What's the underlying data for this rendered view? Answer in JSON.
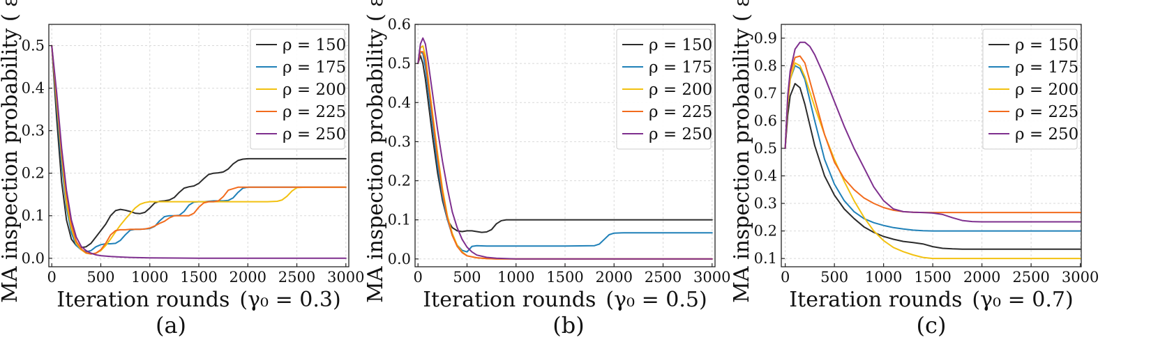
{
  "chart_data": [
    {
      "type": "line",
      "panel_label": "(a)",
      "xlabel": "Iteration rounds",
      "xlabel_param": "(γ₀ = 0.3)",
      "ylabel": "MA inspection probability ( ε )",
      "xlim": [
        -30,
        3030
      ],
      "ylim": [
        -0.02,
        0.55
      ],
      "xticks": [
        0,
        500,
        1000,
        1500,
        2000,
        2500,
        3000
      ],
      "yticks": [
        0.0,
        0.1,
        0.2,
        0.3,
        0.4,
        0.5
      ],
      "ytick_labels": [
        "0.0",
        "0.1",
        "0.2",
        "0.3",
        "0.4",
        "0.5"
      ],
      "grid": true,
      "legend_position": "top-right",
      "series": [
        {
          "name": "ρ = 150",
          "color": "#2b2b2b",
          "x": [
            0,
            50,
            100,
            150,
            200,
            250,
            300,
            350,
            400,
            450,
            500,
            550,
            600,
            650,
            700,
            750,
            800,
            850,
            900,
            950,
            1000,
            1050,
            1100,
            1150,
            1200,
            1250,
            1300,
            1350,
            1400,
            1450,
            1500,
            1550,
            1600,
            1650,
            1700,
            1750,
            1800,
            1850,
            1900,
            1950,
            2000,
            2100,
            2200,
            2500,
            3000
          ],
          "y": [
            0.5,
            0.33,
            0.18,
            0.09,
            0.045,
            0.03,
            0.025,
            0.027,
            0.035,
            0.05,
            0.065,
            0.08,
            0.1,
            0.112,
            0.115,
            0.113,
            0.11,
            0.106,
            0.105,
            0.108,
            0.118,
            0.13,
            0.134,
            0.135,
            0.137,
            0.143,
            0.155,
            0.165,
            0.168,
            0.17,
            0.176,
            0.187,
            0.197,
            0.2,
            0.201,
            0.203,
            0.21,
            0.222,
            0.23,
            0.233,
            0.234,
            0.234,
            0.234,
            0.234,
            0.234
          ]
        },
        {
          "name": "ρ = 175",
          "color": "#1f80b8",
          "x": [
            0,
            50,
            100,
            150,
            200,
            250,
            300,
            350,
            400,
            450,
            500,
            550,
            600,
            650,
            700,
            750,
            800,
            850,
            900,
            950,
            1000,
            1050,
            1100,
            1150,
            1200,
            1250,
            1300,
            1350,
            1400,
            1450,
            1500,
            1550,
            1600,
            1650,
            1700,
            1750,
            1800,
            1850,
            1900,
            1950,
            2000,
            2050,
            2100,
            2200,
            3000
          ],
          "y": [
            0.5,
            0.36,
            0.22,
            0.12,
            0.06,
            0.03,
            0.02,
            0.015,
            0.018,
            0.027,
            0.032,
            0.034,
            0.034,
            0.035,
            0.042,
            0.055,
            0.066,
            0.068,
            0.068,
            0.069,
            0.07,
            0.075,
            0.088,
            0.098,
            0.1,
            0.1,
            0.101,
            0.11,
            0.125,
            0.132,
            0.133,
            0.133,
            0.134,
            0.135,
            0.135,
            0.135,
            0.136,
            0.142,
            0.155,
            0.165,
            0.167,
            0.167,
            0.167,
            0.167,
            0.167
          ]
        },
        {
          "name": "ρ = 200",
          "color": "#f2c110",
          "x": [
            0,
            50,
            100,
            150,
            200,
            250,
            300,
            350,
            400,
            450,
            500,
            550,
            600,
            650,
            700,
            750,
            800,
            850,
            900,
            950,
            1000,
            1100,
            1200,
            1400,
            1600,
            1800,
            2000,
            2200,
            2300,
            2350,
            2400,
            2450,
            2500,
            2600,
            3000
          ],
          "y": [
            0.5,
            0.37,
            0.24,
            0.13,
            0.07,
            0.035,
            0.02,
            0.012,
            0.01,
            0.012,
            0.018,
            0.03,
            0.045,
            0.062,
            0.078,
            0.092,
            0.105,
            0.118,
            0.127,
            0.131,
            0.133,
            0.133,
            0.133,
            0.133,
            0.133,
            0.133,
            0.133,
            0.133,
            0.134,
            0.137,
            0.146,
            0.158,
            0.166,
            0.167,
            0.167
          ]
        },
        {
          "name": "ρ = 225",
          "color": "#f26b1d",
          "x": [
            0,
            50,
            100,
            150,
            200,
            250,
            300,
            350,
            400,
            450,
            500,
            550,
            600,
            650,
            700,
            750,
            800,
            850,
            900,
            950,
            1000,
            1050,
            1100,
            1150,
            1200,
            1250,
            1300,
            1350,
            1400,
            1450,
            1500,
            1550,
            1600,
            1650,
            1700,
            1750,
            1800,
            1900,
            2000,
            2500,
            3000
          ],
          "y": [
            0.5,
            0.38,
            0.25,
            0.15,
            0.08,
            0.04,
            0.022,
            0.013,
            0.01,
            0.012,
            0.02,
            0.035,
            0.055,
            0.065,
            0.067,
            0.067,
            0.068,
            0.068,
            0.068,
            0.069,
            0.071,
            0.076,
            0.082,
            0.087,
            0.095,
            0.1,
            0.1,
            0.1,
            0.1,
            0.106,
            0.12,
            0.13,
            0.133,
            0.133,
            0.135,
            0.145,
            0.16,
            0.167,
            0.167,
            0.167,
            0.167
          ]
        },
        {
          "name": "ρ = 250",
          "color": "#7e2f8e",
          "x": [
            0,
            50,
            100,
            150,
            200,
            250,
            300,
            350,
            400,
            450,
            500,
            600,
            700,
            800,
            1000,
            1500,
            2000,
            3000
          ],
          "y": [
            0.5,
            0.39,
            0.26,
            0.16,
            0.09,
            0.05,
            0.028,
            0.018,
            0.012,
            0.008,
            0.006,
            0.004,
            0.003,
            0.002,
            0.001,
            0.0,
            0.0,
            0.0
          ]
        }
      ]
    },
    {
      "type": "line",
      "panel_label": "(b)",
      "xlabel": "Iteration rounds",
      "xlabel_param": "(γ₀ = 0.5)",
      "ylabel": "MA inspection probability ( ε )",
      "xlim": [
        -30,
        3030
      ],
      "ylim": [
        -0.02,
        0.6
      ],
      "xticks": [
        0,
        500,
        1000,
        1500,
        2000,
        2500,
        3000
      ],
      "yticks": [
        0.0,
        0.1,
        0.2,
        0.3,
        0.4,
        0.5,
        0.6
      ],
      "ytick_labels": [
        "0.0",
        "0.1",
        "0.2",
        "0.3",
        "0.4",
        "0.5",
        "0.6"
      ],
      "grid": true,
      "legend_position": "top-right",
      "series": [
        {
          "name": "ρ = 150",
          "color": "#2b2b2b",
          "x": [
            0,
            25,
            50,
            75,
            100,
            150,
            200,
            250,
            300,
            350,
            400,
            450,
            500,
            550,
            600,
            650,
            700,
            750,
            800,
            850,
            900,
            1000,
            1500,
            2000,
            3000
          ],
          "y": [
            0.5,
            0.52,
            0.5,
            0.46,
            0.41,
            0.31,
            0.22,
            0.15,
            0.1,
            0.08,
            0.072,
            0.07,
            0.072,
            0.072,
            0.07,
            0.068,
            0.069,
            0.075,
            0.09,
            0.098,
            0.1,
            0.1,
            0.1,
            0.1,
            0.1
          ]
        },
        {
          "name": "ρ = 175",
          "color": "#1f80b8",
          "x": [
            0,
            25,
            50,
            75,
            100,
            150,
            200,
            250,
            300,
            350,
            400,
            450,
            500,
            550,
            600,
            700,
            1000,
            1500,
            1800,
            1850,
            1900,
            1950,
            2000,
            2100,
            3000
          ],
          "y": [
            0.5,
            0.53,
            0.525,
            0.49,
            0.44,
            0.34,
            0.24,
            0.16,
            0.1,
            0.06,
            0.035,
            0.022,
            0.018,
            0.032,
            0.034,
            0.033,
            0.033,
            0.033,
            0.034,
            0.038,
            0.05,
            0.062,
            0.066,
            0.067,
            0.067
          ]
        },
        {
          "name": "ρ = 200",
          "color": "#f2c110",
          "x": [
            0,
            25,
            50,
            75,
            100,
            150,
            200,
            250,
            300,
            350,
            400,
            450,
            500,
            600,
            700,
            800,
            1000,
            3000
          ],
          "y": [
            0.5,
            0.54,
            0.545,
            0.52,
            0.47,
            0.37,
            0.27,
            0.18,
            0.11,
            0.065,
            0.035,
            0.018,
            0.008,
            0.003,
            0.001,
            0.0,
            0.0,
            0.0
          ]
        },
        {
          "name": "ρ = 225",
          "color": "#f26b1d",
          "x": [
            0,
            25,
            50,
            75,
            100,
            150,
            200,
            250,
            300,
            350,
            400,
            450,
            500,
            600,
            700,
            800,
            1000,
            3000
          ],
          "y": [
            0.5,
            0.53,
            0.53,
            0.51,
            0.46,
            0.36,
            0.26,
            0.17,
            0.105,
            0.06,
            0.032,
            0.016,
            0.008,
            0.003,
            0.001,
            0.0,
            0.0,
            0.0
          ]
        },
        {
          "name": "ρ = 250",
          "color": "#7e2f8e",
          "x": [
            0,
            25,
            50,
            75,
            100,
            150,
            200,
            250,
            300,
            350,
            400,
            450,
            500,
            550,
            600,
            700,
            800,
            900,
            1000,
            3000
          ],
          "y": [
            0.5,
            0.55,
            0.565,
            0.55,
            0.51,
            0.42,
            0.33,
            0.25,
            0.18,
            0.12,
            0.08,
            0.05,
            0.03,
            0.018,
            0.01,
            0.004,
            0.002,
            0.001,
            0.0,
            0.0
          ]
        }
      ]
    },
    {
      "type": "line",
      "panel_label": "(c)",
      "xlabel": "Iteration rounds",
      "xlabel_param": "(γ₀ = 0.7)",
      "ylabel": "MA inspection probability ( ε )",
      "xlim": [
        -40,
        3010
      ],
      "ylim": [
        0.07,
        0.95
      ],
      "xticks": [
        0,
        500,
        1000,
        1500,
        2000,
        2500,
        3000
      ],
      "yticks": [
        0.1,
        0.2,
        0.3,
        0.4,
        0.5,
        0.6,
        0.7,
        0.8,
        0.9
      ],
      "ytick_labels": [
        "0.1",
        "0.2",
        "0.3",
        "0.4",
        "0.5",
        "0.6",
        "0.7",
        "0.8",
        "0.9"
      ],
      "grid": true,
      "legend_position": "top-right",
      "series": [
        {
          "name": "ρ = 150",
          "color": "#2b2b2b",
          "x": [
            0,
            25,
            50,
            100,
            150,
            200,
            300,
            400,
            500,
            600,
            700,
            800,
            900,
            1000,
            1100,
            1200,
            1300,
            1400,
            1500,
            1600,
            1700,
            1800,
            2000,
            3000
          ],
          "y": [
            0.5,
            0.62,
            0.69,
            0.735,
            0.72,
            0.66,
            0.51,
            0.4,
            0.33,
            0.28,
            0.245,
            0.215,
            0.195,
            0.18,
            0.17,
            0.162,
            0.158,
            0.153,
            0.143,
            0.137,
            0.135,
            0.134,
            0.134,
            0.134
          ]
        },
        {
          "name": "ρ = 175",
          "color": "#1f80b8",
          "x": [
            0,
            25,
            50,
            100,
            150,
            200,
            300,
            400,
            500,
            600,
            700,
            800,
            900,
            1000,
            1100,
            1200,
            1300,
            1400,
            1500,
            1600,
            1800,
            2000,
            3000
          ],
          "y": [
            0.5,
            0.66,
            0.75,
            0.8,
            0.79,
            0.75,
            0.6,
            0.46,
            0.37,
            0.31,
            0.27,
            0.245,
            0.23,
            0.22,
            0.212,
            0.207,
            0.203,
            0.201,
            0.2,
            0.2,
            0.2,
            0.2,
            0.2
          ]
        },
        {
          "name": "ρ = 200",
          "color": "#f2c110",
          "x": [
            0,
            25,
            50,
            100,
            150,
            200,
            300,
            400,
            500,
            600,
            700,
            800,
            900,
            1000,
            1100,
            1200,
            1300,
            1400,
            1500,
            1600,
            1800,
            2000,
            3000
          ],
          "y": [
            0.5,
            0.66,
            0.75,
            0.81,
            0.8,
            0.76,
            0.65,
            0.55,
            0.46,
            0.38,
            0.31,
            0.25,
            0.2,
            0.165,
            0.14,
            0.125,
            0.113,
            0.104,
            0.1,
            0.1,
            0.1,
            0.1,
            0.1
          ]
        },
        {
          "name": "ρ = 225",
          "color": "#f26b1d",
          "x": [
            0,
            25,
            50,
            100,
            150,
            200,
            300,
            400,
            500,
            600,
            700,
            800,
            900,
            1000,
            1100,
            1200,
            1300,
            1400,
            1500,
            1600,
            1800,
            2000,
            3000
          ],
          "y": [
            0.5,
            0.68,
            0.77,
            0.83,
            0.835,
            0.81,
            0.68,
            0.55,
            0.45,
            0.39,
            0.35,
            0.32,
            0.3,
            0.285,
            0.275,
            0.27,
            0.268,
            0.267,
            0.267,
            0.267,
            0.267,
            0.267,
            0.267
          ]
        },
        {
          "name": "ρ = 250",
          "color": "#7e2f8e",
          "x": [
            0,
            25,
            50,
            100,
            150,
            200,
            250,
            300,
            400,
            500,
            600,
            700,
            800,
            900,
            1000,
            1100,
            1200,
            1300,
            1400,
            1500,
            1600,
            1700,
            1800,
            1900,
            2000,
            3000
          ],
          "y": [
            0.5,
            0.69,
            0.78,
            0.86,
            0.885,
            0.885,
            0.87,
            0.84,
            0.76,
            0.67,
            0.58,
            0.5,
            0.43,
            0.36,
            0.31,
            0.28,
            0.27,
            0.268,
            0.267,
            0.265,
            0.26,
            0.248,
            0.238,
            0.234,
            0.233,
            0.233
          ]
        }
      ]
    }
  ]
}
